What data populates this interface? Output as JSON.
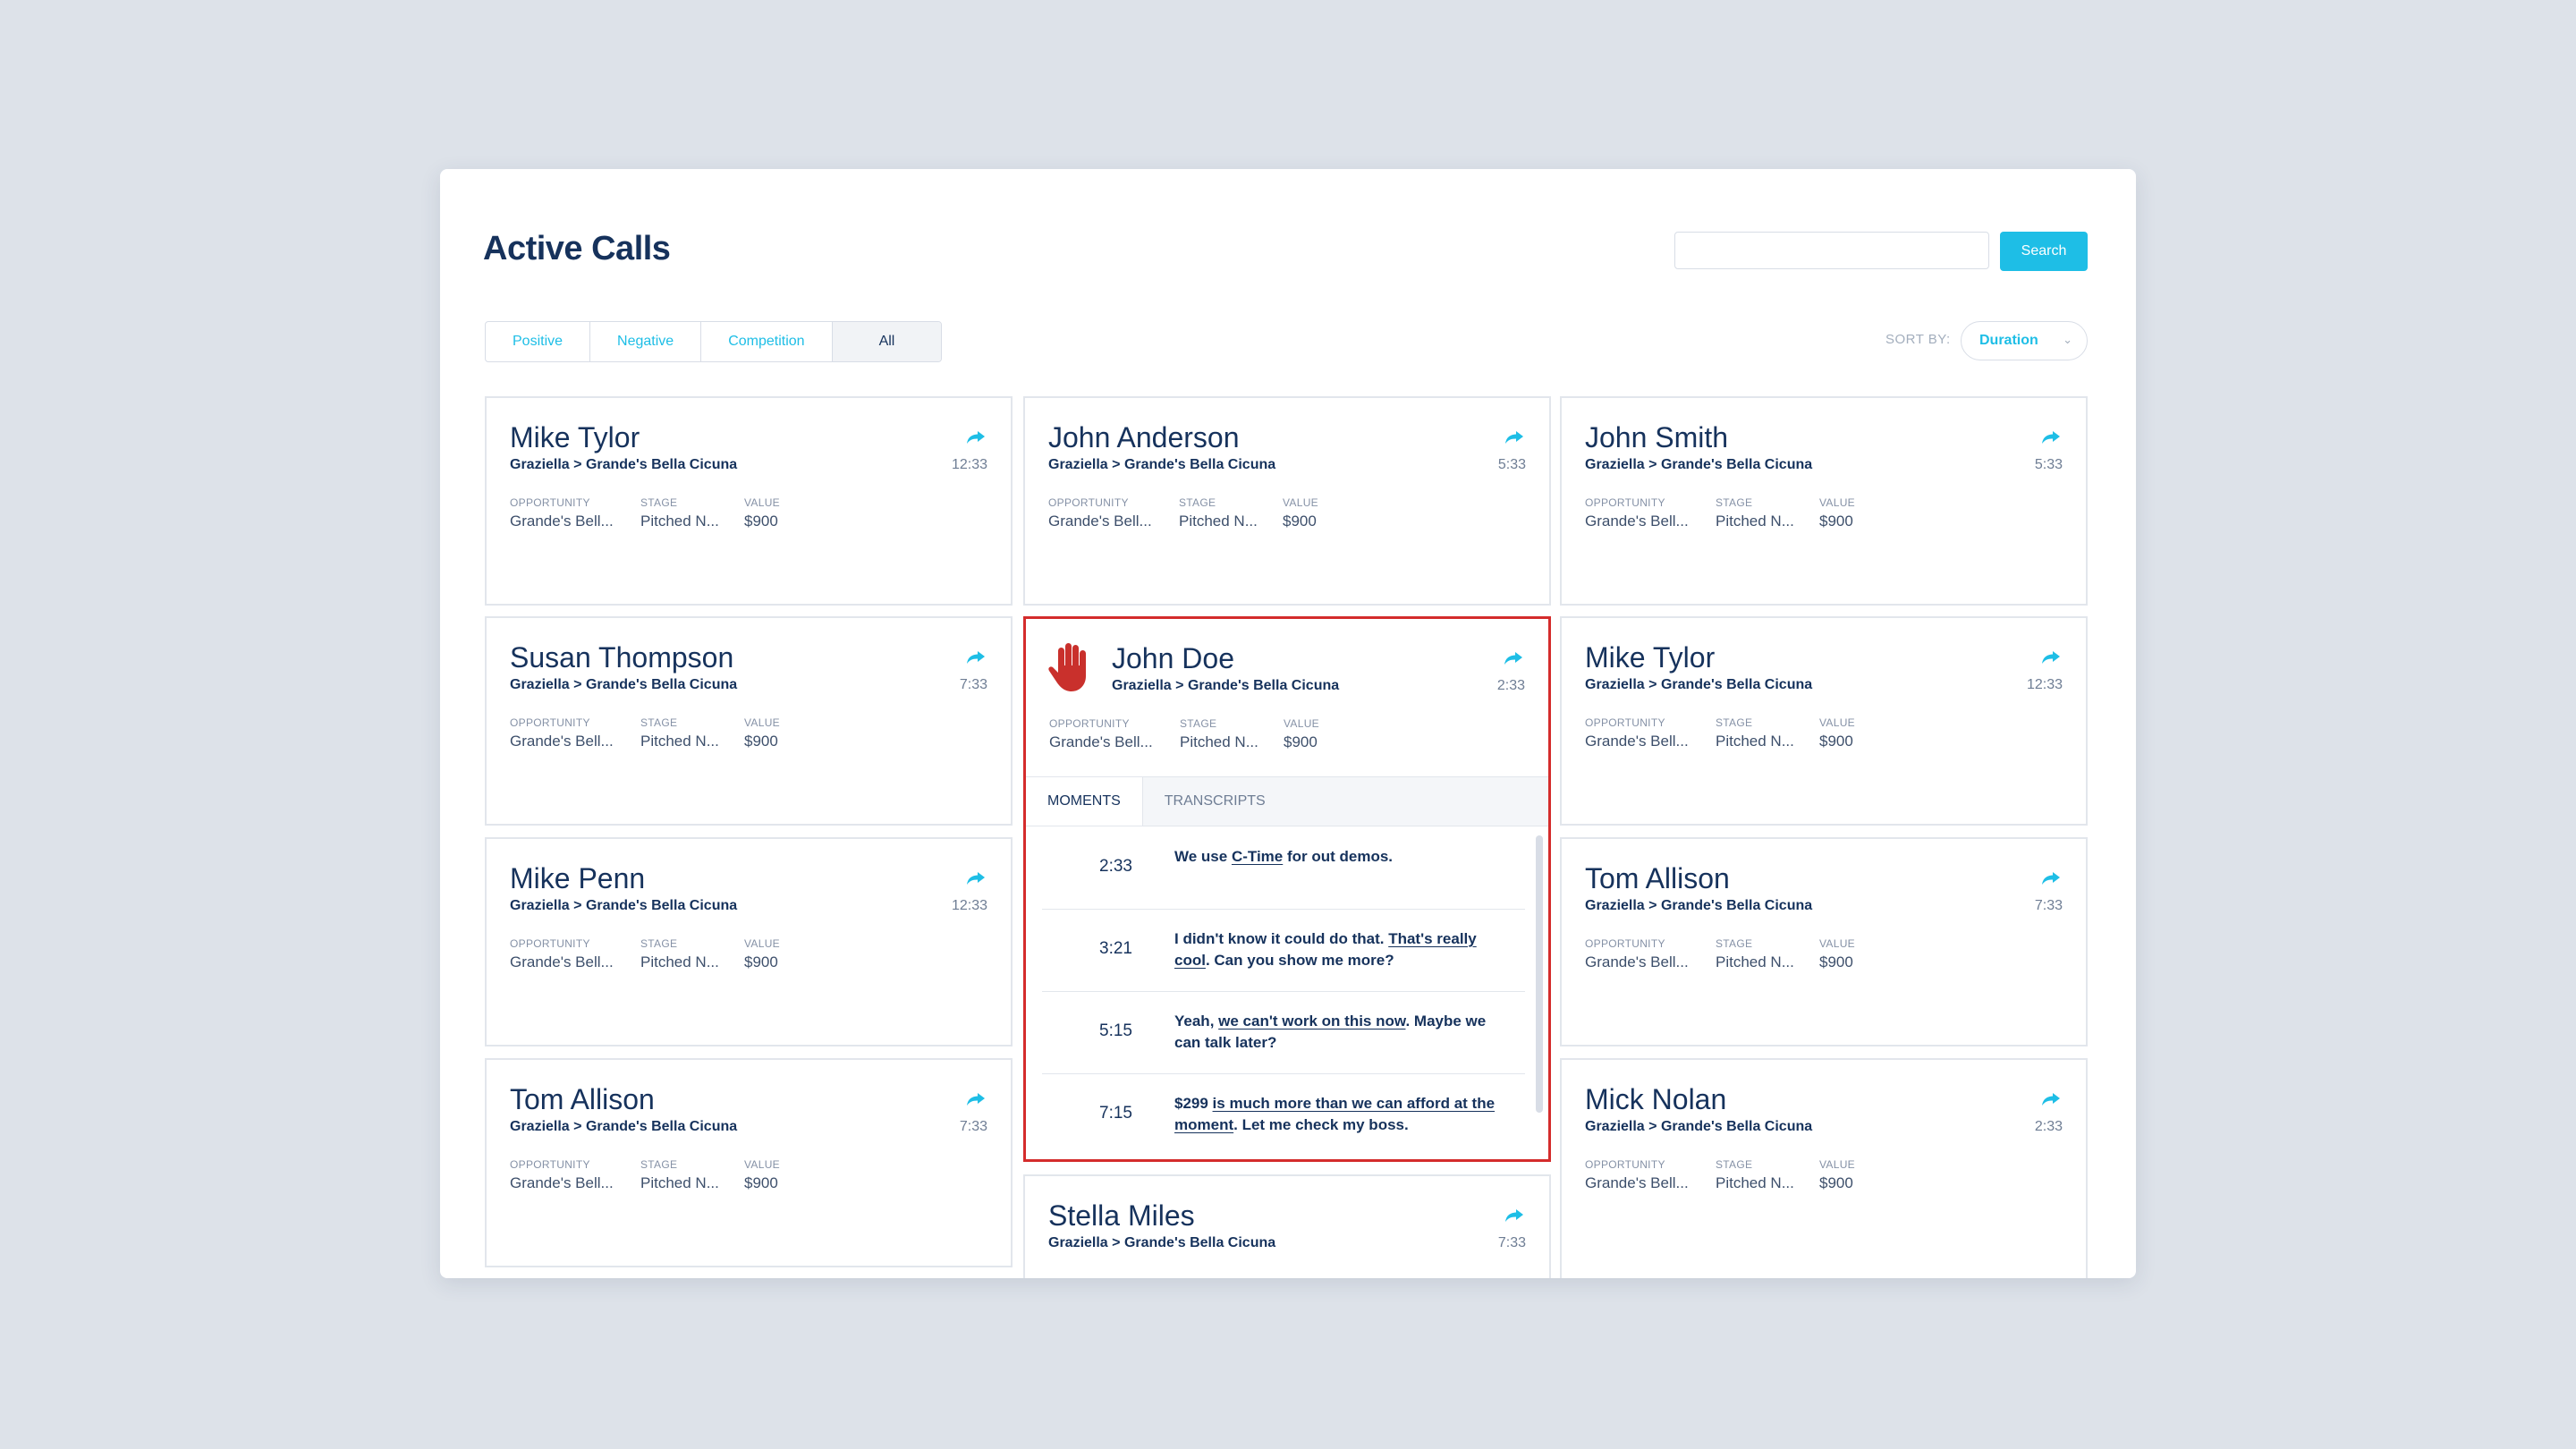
{
  "page": {
    "title": "Active Calls"
  },
  "search": {
    "placeholder": "",
    "value": "",
    "button_label": "Search"
  },
  "filters": [
    "Positive",
    "Negative",
    "Competition",
    "All"
  ],
  "active_filter": "All",
  "sort": {
    "label": "SORT BY:",
    "value": "Duration"
  },
  "labels": {
    "opportunity": "OPPORTUNITY",
    "stage": "STAGE",
    "value": "VALUE",
    "moments": "MOMENTS",
    "transcripts": "TRANSCRIPTS"
  },
  "colors": {
    "accent": "#1ebee6",
    "positive": "#3ec47b",
    "negative": "#c9302c",
    "warning": "#f4a845",
    "flag": "#d42c2c"
  },
  "cards": [
    {
      "name": "Mike Tylor",
      "path": "Graziella > Grande's Bella Cicuna",
      "duration": "12:33",
      "opportunity": "Grande's Bell...",
      "stage": "Pitched N...",
      "value": "$900",
      "icons": [
        "warning"
      ]
    },
    {
      "name": "John Anderson",
      "path": "Graziella > Grande's Bella Cicuna",
      "duration": "5:33",
      "opportunity": "Grande's Bell...",
      "stage": "Pitched N...",
      "value": "$900",
      "icons": [
        "negative",
        "negative",
        "positive",
        "warning"
      ]
    },
    {
      "name": "John Smith",
      "path": "Graziella > Grande's Bella Cicuna",
      "duration": "5:33",
      "opportunity": "Grande's Bell...",
      "stage": "Pitched N...",
      "value": "$900",
      "icons": [
        "negative",
        "negative",
        "positive",
        "warning"
      ]
    },
    {
      "name": "Susan Thompson",
      "path": "Graziella > Grande's Bella Cicuna",
      "duration": "7:33",
      "opportunity": "Grande's Bell...",
      "stage": "Pitched N...",
      "value": "$900",
      "icons": [
        "warning",
        "positive",
        "positive"
      ]
    },
    {
      "name": "John Doe",
      "path": "Graziella > Grande's Bella Cicuna",
      "duration": "2:33",
      "opportunity": "Grande's Bell...",
      "stage": "Pitched N...",
      "value": "$900",
      "flag_icon": "stop-hand-icon",
      "moments": [
        {
          "type": "warning",
          "time": "2:33",
          "parts": [
            {
              "t": "We use "
            },
            {
              "t": "C-Time",
              "u": true
            },
            {
              "t": " for out demos."
            }
          ]
        },
        {
          "type": "positive",
          "time": "3:21",
          "parts": [
            {
              "t": "I didn't know it could do that. "
            },
            {
              "t": "That's really cool",
              "u": true
            },
            {
              "t": ". Can you show me more?"
            }
          ]
        },
        {
          "type": "negative",
          "time": "5:15",
          "parts": [
            {
              "t": "Yeah, "
            },
            {
              "t": "we can't work on this now",
              "u": true
            },
            {
              "t": ". Maybe we can talk later?"
            }
          ]
        },
        {
          "type": "negative",
          "time": "7:15",
          "parts": [
            {
              "t": "$299 "
            },
            {
              "t": "is much more than we can afford at the moment",
              "u": true
            },
            {
              "t": ". Let me check my boss."
            }
          ]
        }
      ]
    },
    {
      "name": "Mike Tylor",
      "path": "Graziella > Grande's Bella Cicuna",
      "duration": "12:33",
      "opportunity": "Grande's Bell...",
      "stage": "Pitched N...",
      "value": "$900",
      "icons": [
        "warning"
      ]
    },
    {
      "name": "Mike Penn",
      "path": "Graziella > Grande's Bella Cicuna",
      "duration": "12:33",
      "opportunity": "Grande's Bell...",
      "stage": "Pitched N...",
      "value": "$900",
      "icons": [
        "warning"
      ]
    },
    {
      "name": "Tom Allison",
      "path": "Graziella > Grande's Bella Cicuna",
      "duration": "7:33",
      "opportunity": "Grande's Bell...",
      "stage": "Pitched N...",
      "value": "$900",
      "icons": [
        "warning",
        "positive",
        "positive"
      ]
    },
    {
      "name": "Tom Allison",
      "path": "Graziella > Grande's Bella Cicuna",
      "duration": "7:33",
      "opportunity": "Grande's Bell...",
      "stage": "Pitched N...",
      "value": "$900",
      "icons": [
        "warning",
        "positive",
        "positive"
      ]
    },
    {
      "name": "Stella Miles",
      "path": "Graziella > Grande's Bella Cicuna",
      "duration": "7:33"
    },
    {
      "name": "Mick Nolan",
      "path": "Graziella > Grande's Bella Cicuna",
      "duration": "2:33",
      "opportunity": "Grande's Bell...",
      "stage": "Pitched N...",
      "value": "$900"
    }
  ]
}
